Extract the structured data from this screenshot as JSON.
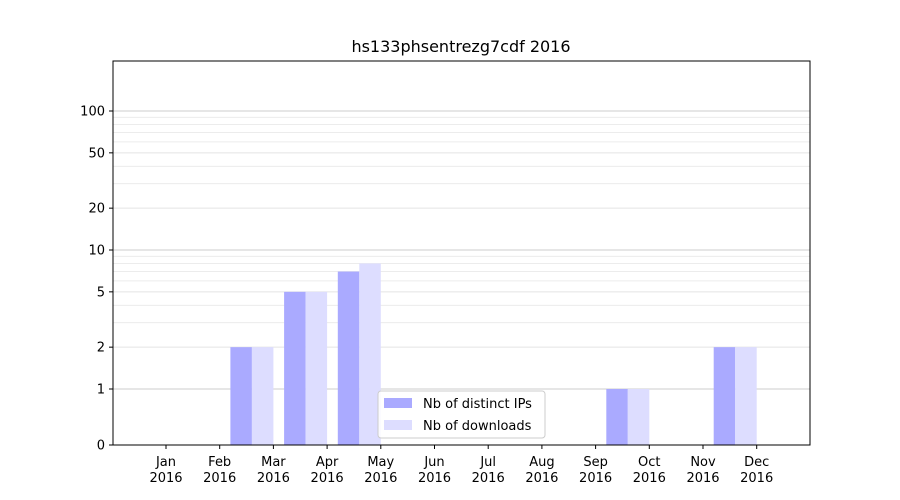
{
  "chart_data": {
    "type": "bar",
    "title": "hs133phsentrezg7cdf 2016",
    "xlabel": "",
    "ylabel": "",
    "yscale": "symlog",
    "ylim": [
      0,
      120
    ],
    "yticks": [
      0,
      1,
      2,
      5,
      10,
      20,
      50,
      100
    ],
    "categories": [
      [
        "Jan",
        "2016"
      ],
      [
        "Feb",
        "2016"
      ],
      [
        "Mar",
        "2016"
      ],
      [
        "Apr",
        "2016"
      ],
      [
        "May",
        "2016"
      ],
      [
        "Jun",
        "2016"
      ],
      [
        "Jul",
        "2016"
      ],
      [
        "Aug",
        "2016"
      ],
      [
        "Sep",
        "2016"
      ],
      [
        "Oct",
        "2016"
      ],
      [
        "Nov",
        "2016"
      ],
      [
        "Dec",
        "2016"
      ]
    ],
    "series": [
      {
        "name": "Nb of distinct IPs",
        "color": "#aaaaff",
        "values": [
          0,
          2,
          5,
          7,
          0,
          0,
          0,
          0,
          1,
          0,
          2,
          0
        ]
      },
      {
        "name": "Nb of downloads",
        "color": "#ddddff",
        "values": [
          0,
          2,
          5,
          8,
          0,
          0,
          0,
          0,
          1,
          0,
          2,
          0
        ]
      }
    ],
    "grid": true,
    "legend_position": "bottom-center"
  }
}
